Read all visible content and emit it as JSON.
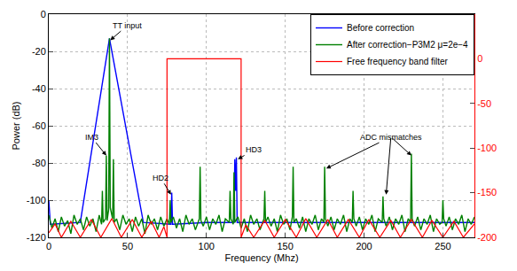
{
  "chart_data": {
    "type": "line",
    "x_label": "Frequency (Mhz)",
    "y_label": "Power (dB)",
    "xlim": [
      0,
      270
    ],
    "xticks": [
      0,
      50,
      100,
      150,
      200,
      250
    ],
    "ylim": [
      -120,
      0
    ],
    "yticks": [
      -120,
      -100,
      -80,
      -60,
      -40,
      -20,
      0
    ],
    "y2lim": [
      -200,
      50
    ],
    "y2ticks": [
      -200,
      -150,
      -100,
      -50,
      0
    ],
    "grid": true,
    "legend": "upper right",
    "series": [
      {
        "name": "Before correction",
        "color": "#0000ff",
        "x": [
          0,
          1,
          20,
          38.5,
          60,
          77.5,
          78,
          78.5,
          100,
          117.5,
          118,
          118.5,
          119,
          119.5,
          150,
          200,
          270
        ],
        "values": [
          -100,
          -113,
          -112,
          -13,
          -112,
          -113,
          -96,
          -113,
          -112,
          -112,
          -78,
          -95,
          -77,
          -112,
          -112,
          -112,
          -112
        ]
      },
      {
        "name": "After correction−P3M2 μ=2e−4",
        "color": "#008000",
        "x": [
          0,
          2,
          4,
          6,
          8,
          10,
          12,
          14,
          16,
          18,
          20,
          22,
          24,
          26,
          28,
          30,
          32,
          33.5,
          34,
          34.5,
          36,
          36.5,
          37,
          38,
          38.5,
          39,
          40.5,
          41,
          41.5,
          43,
          45,
          47,
          49,
          51,
          53,
          55,
          57,
          59,
          61,
          63,
          65,
          67,
          69,
          71,
          73,
          75,
          76.5,
          77,
          77.5,
          79,
          81,
          83,
          85,
          87,
          89,
          91,
          93,
          95.5,
          96,
          96.5,
          98,
          100,
          102,
          104,
          106,
          108,
          110,
          112,
          114.5,
          115,
          115.5,
          117,
          117.5,
          118,
          120,
          122,
          124,
          126,
          128,
          130,
          132,
          134,
          136.5,
          137,
          137.5,
          139,
          141,
          143,
          145,
          147,
          149,
          151,
          153,
          154.5,
          155,
          155.5,
          157,
          159,
          161,
          163,
          165,
          167,
          169,
          171,
          173,
          174.5,
          175,
          175.5,
          177,
          179,
          181,
          183,
          185,
          187,
          189,
          191,
          192.5,
          193,
          193.5,
          195,
          197,
          199,
          201,
          203,
          205,
          207,
          209,
          211.5,
          212,
          212.5,
          214,
          216,
          218,
          220,
          222,
          224,
          226,
          228,
          229.5,
          230,
          230.5,
          232,
          234,
          236,
          238,
          240,
          242,
          244,
          246,
          248,
          249.5,
          250,
          250.5,
          252,
          254,
          256,
          258,
          260,
          262,
          264,
          266,
          268,
          270
        ],
        "values": [
          -108,
          -115,
          -110,
          -117,
          -109,
          -114,
          -111,
          -118,
          -108,
          -113,
          -110,
          -116,
          -109,
          -114,
          -110,
          -117,
          -108,
          -113,
          -95,
          -112,
          -110,
          -76,
          -111,
          -105,
          -13,
          -104,
          -110,
          -78,
          -112,
          -110,
          -116,
          -108,
          -113,
          -110,
          -117,
          -109,
          -114,
          -110,
          -118,
          -108,
          -113,
          -110,
          -116,
          -109,
          -114,
          -110,
          -113,
          -100,
          -112,
          -109,
          -115,
          -110,
          -117,
          -108,
          -113,
          -110,
          -116,
          -110,
          -82,
          -111,
          -114,
          -109,
          -116,
          -110,
          -113,
          -108,
          -117,
          -110,
          -112,
          -95,
          -110,
          -113,
          -85,
          -112,
          -109,
          -115,
          -110,
          -117,
          -108,
          -113,
          -110,
          -116,
          -110,
          -95,
          -112,
          -109,
          -114,
          -110,
          -117,
          -108,
          -113,
          -110,
          -116,
          -109,
          -82,
          -112,
          -110,
          -115,
          -109,
          -117,
          -110,
          -113,
          -108,
          -116,
          -110,
          -112,
          -82,
          -110,
          -114,
          -109,
          -116,
          -110,
          -113,
          -108,
          -117,
          -110,
          -112,
          -95,
          -110,
          -114,
          -109,
          -116,
          -110,
          -113,
          -108,
          -117,
          -110,
          -112,
          -98,
          -110,
          -114,
          -109,
          -116,
          -110,
          -113,
          -108,
          -117,
          -110,
          -112,
          -75,
          -110,
          -114,
          -109,
          -116,
          -110,
          -113,
          -108,
          -117,
          -110,
          -113,
          -112,
          -100,
          -110,
          -114,
          -109,
          -116,
          -110,
          -113,
          -108,
          -117,
          -110,
          -113,
          -109
        ]
      },
      {
        "name": "Free frequency band filter",
        "color": "#ff0000",
        "axis": "y2",
        "x": [
          0,
          4,
          8,
          14,
          20,
          27,
          33,
          40,
          46,
          53,
          59,
          65,
          70,
          73,
          75,
          75,
          122,
          122,
          125,
          130,
          137,
          143,
          150,
          157,
          163,
          170,
          177,
          183,
          190,
          197,
          203,
          210,
          217,
          223,
          230,
          237,
          243,
          250,
          257,
          263,
          270
        ],
        "values": [
          -195,
          -185,
          -200,
          -182,
          -200,
          -180,
          -200,
          -179,
          -200,
          -180,
          -200,
          -182,
          -200,
          -188,
          -200,
          0,
          0,
          -200,
          -186,
          -200,
          -181,
          -200,
          -180,
          -200,
          -179,
          -200,
          -180,
          -200,
          -180,
          -200,
          -180,
          -200,
          -181,
          -200,
          -180,
          -200,
          -181,
          -200,
          -182,
          -200,
          -185
        ]
      }
    ],
    "annotations": [
      {
        "text": "TT input",
        "x": 50,
        "y": -6,
        "targets": [
          [
            39,
            -14
          ]
        ]
      },
      {
        "text": "IM3",
        "x": 27,
        "y": -66,
        "targets": [
          [
            36.5,
            -76
          ]
        ]
      },
      {
        "text": "HD2",
        "x": 71,
        "y": -88,
        "targets": [
          [
            77.5,
            -97
          ]
        ]
      },
      {
        "text": "HD3",
        "x": 130,
        "y": -73,
        "targets": [
          [
            120,
            -78
          ]
        ]
      },
      {
        "text": "ADC mismatches",
        "x": 217,
        "y": -66,
        "targets": [
          [
            176,
            -83
          ],
          [
            214,
            -97
          ],
          [
            230,
            -76
          ]
        ]
      }
    ]
  }
}
